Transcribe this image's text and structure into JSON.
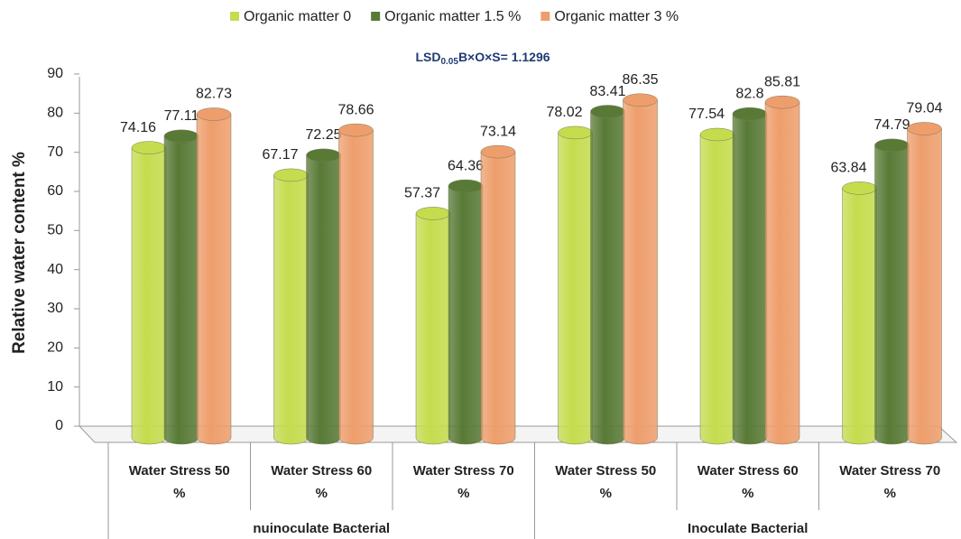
{
  "chart_data": {
    "type": "bar",
    "annotation": [
      "LSD",
      "0.05",
      "B×O×S= 1.1296"
    ],
    "y_label": "Relative water content  %",
    "categories": [
      "Water Stress 50 %",
      "Water Stress 60 %",
      "Water Stress 70 %",
      "Water Stress 50 %",
      "Water Stress 60 %",
      "Water Stress 70 %"
    ],
    "groups": [
      "nuinoculate Bacterial",
      "Inoculate Bacterial"
    ],
    "series": [
      {
        "name": "Organic matter 0",
        "color": "#c5dc4e",
        "values": [
          74.16,
          67.17,
          57.37,
          78.02,
          77.54,
          63.84
        ]
      },
      {
        "name": "Organic matter 1.5 %",
        "color": "#587a36",
        "values": [
          77.11,
          72.25,
          64.36,
          83.41,
          82.8,
          74.79
        ]
      },
      {
        "name": "Organic matter 3 %",
        "color": "#ee9e6c",
        "values": [
          82.73,
          78.66,
          73.14,
          86.35,
          85.81,
          79.04
        ]
      }
    ],
    "ylim": [
      0,
      90
    ],
    "yticks": [
      0,
      10,
      20,
      30,
      40,
      50,
      60,
      70,
      80,
      90
    ],
    "legend": "top"
  }
}
